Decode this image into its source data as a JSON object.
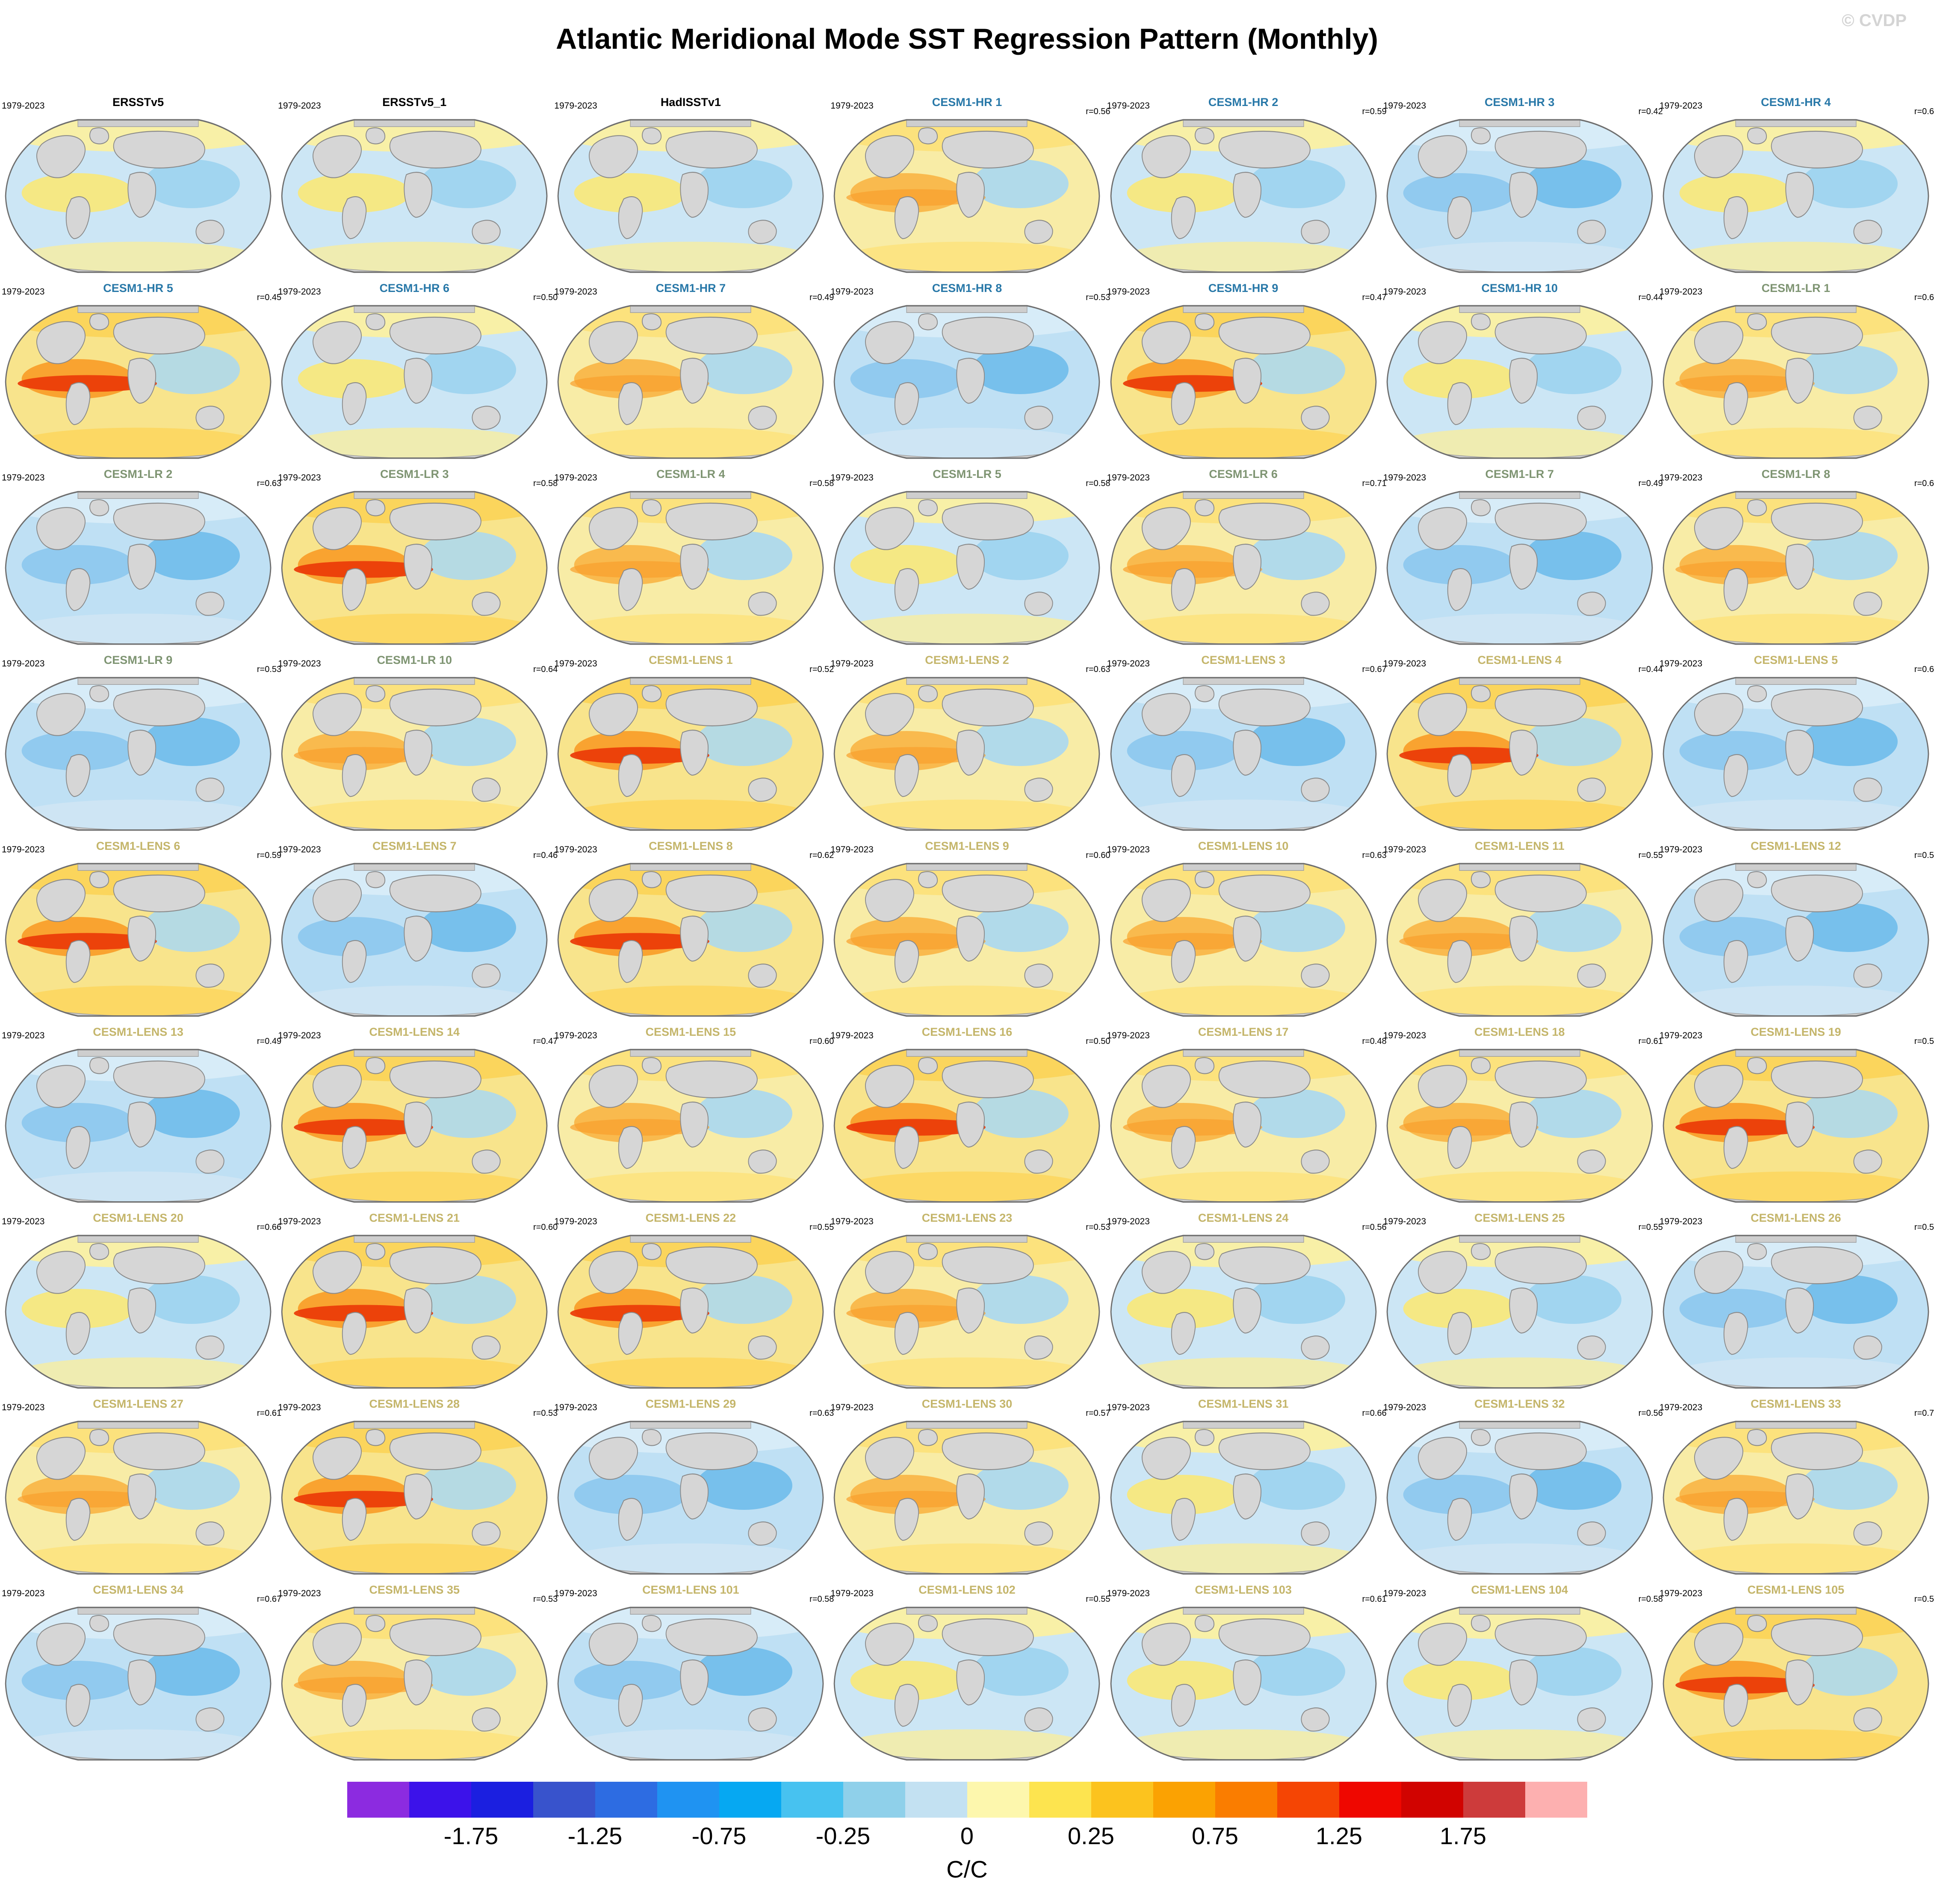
{
  "title": "Atlantic Meridional Mode SST Regression Pattern (Monthly)",
  "watermark": "© CVDP",
  "colors": {
    "group_obs": "#000000",
    "group_hr": "#2878a8",
    "group_lr": "#7e9472",
    "group_lens": "#c4b56a",
    "land": "#d6d6d6",
    "ocean_base": "#cce6f5"
  },
  "chart_data": {
    "type": "heatmap",
    "title": "Atlantic Meridional Mode SST Regression Pattern (Monthly)",
    "subtitle": "",
    "layout": "9 rows x 7 columns of global SST regression maps, shared colorbar at bottom",
    "colorbar": {
      "unit": "C/C",
      "tick_labels": [
        "-1.75",
        "-1.25",
        "-0.75",
        "-0.25",
        "0",
        "0.25",
        "0.75",
        "1.25",
        "1.75"
      ],
      "n_segments": 20,
      "segment_colors": [
        "#8c2be0",
        "#3c12ea",
        "#1b1fe0",
        "#3853cc",
        "#2d6ce2",
        "#1f93f2",
        "#06a8f2",
        "#47c2f0",
        "#8fd0ea",
        "#c3e1f2",
        "#fdf7ad",
        "#fde44f",
        "#fcc31e",
        "#fba202",
        "#fa7d00",
        "#f54504",
        "#ef0700",
        "#d10300",
        "#cd3b3b",
        "#fdb0b0"
      ]
    },
    "panels": [
      {
        "title": "ERSSTv5",
        "period": "1979-2023",
        "r": null,
        "r_label": "",
        "group": "obs",
        "tone": "mixed"
      },
      {
        "title": "ERSSTv5_1",
        "period": "1979-2023",
        "r": null,
        "r_label": "",
        "group": "obs",
        "tone": "mixed"
      },
      {
        "title": "HadISSTv1",
        "period": "1979-2023",
        "r": null,
        "r_label": "",
        "group": "obs",
        "tone": "mixed"
      },
      {
        "title": "CESM1-HR 1",
        "period": "1979-2023",
        "r": 0.56,
        "r_label": "r=0.56",
        "group": "hr",
        "tone": "warm"
      },
      {
        "title": "CESM1-HR 2",
        "period": "1979-2023",
        "r": 0.59,
        "r_label": "r=0.59",
        "group": "hr",
        "tone": "mixed"
      },
      {
        "title": "CESM1-HR 3",
        "period": "1979-2023",
        "r": 0.42,
        "r_label": "r=0.42",
        "group": "hr",
        "tone": "cool"
      },
      {
        "title": "CESM1-HR 4",
        "period": "1979-2023",
        "r": 0.6,
        "r_label": "r=0.6",
        "group": "hr",
        "tone": "mixed"
      },
      {
        "title": "CESM1-HR 5",
        "period": "1979-2023",
        "r": 0.45,
        "r_label": "r=0.45",
        "group": "hr",
        "tone": "hot"
      },
      {
        "title": "CESM1-HR 6",
        "period": "1979-2023",
        "r": 0.5,
        "r_label": "r=0.50",
        "group": "hr",
        "tone": "mixed"
      },
      {
        "title": "CESM1-HR 7",
        "period": "1979-2023",
        "r": 0.49,
        "r_label": "r=0.49",
        "group": "hr",
        "tone": "warm"
      },
      {
        "title": "CESM1-HR 8",
        "period": "1979-2023",
        "r": 0.53,
        "r_label": "r=0.53",
        "group": "hr",
        "tone": "cool"
      },
      {
        "title": "CESM1-HR 9",
        "period": "1979-2023",
        "r": 0.47,
        "r_label": "r=0.47",
        "group": "hr",
        "tone": "hot"
      },
      {
        "title": "CESM1-HR 10",
        "period": "1979-2023",
        "r": 0.44,
        "r_label": "r=0.44",
        "group": "hr",
        "tone": "mixed"
      },
      {
        "title": "CESM1-LR 1",
        "period": "1979-2023",
        "r": 0.6,
        "r_label": "r=0.6",
        "group": "lr",
        "tone": "warm"
      },
      {
        "title": "CESM1-LR 2",
        "period": "1979-2023",
        "r": 0.63,
        "r_label": "r=0.63",
        "group": "lr",
        "tone": "cool"
      },
      {
        "title": "CESM1-LR 3",
        "period": "1979-2023",
        "r": 0.58,
        "r_label": "r=0.58",
        "group": "lr",
        "tone": "hot"
      },
      {
        "title": "CESM1-LR 4",
        "period": "1979-2023",
        "r": 0.58,
        "r_label": "r=0.58",
        "group": "lr",
        "tone": "warm"
      },
      {
        "title": "CESM1-LR 5",
        "period": "1979-2023",
        "r": 0.58,
        "r_label": "r=0.58",
        "group": "lr",
        "tone": "mixed"
      },
      {
        "title": "CESM1-LR 6",
        "period": "1979-2023",
        "r": 0.71,
        "r_label": "r=0.71",
        "group": "lr",
        "tone": "warm"
      },
      {
        "title": "CESM1-LR 7",
        "period": "1979-2023",
        "r": 0.49,
        "r_label": "r=0.49",
        "group": "lr",
        "tone": "cool"
      },
      {
        "title": "CESM1-LR 8",
        "period": "1979-2023",
        "r": 0.6,
        "r_label": "r=0.6",
        "group": "lr",
        "tone": "warm"
      },
      {
        "title": "CESM1-LR 9",
        "period": "1979-2023",
        "r": 0.53,
        "r_label": "r=0.53",
        "group": "lr",
        "tone": "cool"
      },
      {
        "title": "CESM1-LR 10",
        "period": "1979-2023",
        "r": 0.64,
        "r_label": "r=0.64",
        "group": "lr",
        "tone": "warm"
      },
      {
        "title": "CESM1-LENS 1",
        "period": "1979-2023",
        "r": 0.52,
        "r_label": "r=0.52",
        "group": "lens",
        "tone": "hot"
      },
      {
        "title": "CESM1-LENS 2",
        "period": "1979-2023",
        "r": 0.63,
        "r_label": "r=0.63",
        "group": "lens",
        "tone": "warm"
      },
      {
        "title": "CESM1-LENS 3",
        "period": "1979-2023",
        "r": 0.67,
        "r_label": "r=0.67",
        "group": "lens",
        "tone": "cool"
      },
      {
        "title": "CESM1-LENS 4",
        "period": "1979-2023",
        "r": 0.44,
        "r_label": "r=0.44",
        "group": "lens",
        "tone": "hot"
      },
      {
        "title": "CESM1-LENS 5",
        "period": "1979-2023",
        "r": 0.6,
        "r_label": "r=0.6",
        "group": "lens",
        "tone": "cool"
      },
      {
        "title": "CESM1-LENS 6",
        "period": "1979-2023",
        "r": 0.59,
        "r_label": "r=0.59",
        "group": "lens",
        "tone": "hot"
      },
      {
        "title": "CESM1-LENS 7",
        "period": "1979-2023",
        "r": 0.46,
        "r_label": "r=0.46",
        "group": "lens",
        "tone": "cool"
      },
      {
        "title": "CESM1-LENS 8",
        "period": "1979-2023",
        "r": 0.62,
        "r_label": "r=0.62",
        "group": "lens",
        "tone": "hot"
      },
      {
        "title": "CESM1-LENS 9",
        "period": "1979-2023",
        "r": 0.6,
        "r_label": "r=0.60",
        "group": "lens",
        "tone": "warm"
      },
      {
        "title": "CESM1-LENS 10",
        "period": "1979-2023",
        "r": 0.63,
        "r_label": "r=0.63",
        "group": "lens",
        "tone": "warm"
      },
      {
        "title": "CESM1-LENS 11",
        "period": "1979-2023",
        "r": 0.55,
        "r_label": "r=0.55",
        "group": "lens",
        "tone": "warm"
      },
      {
        "title": "CESM1-LENS 12",
        "period": "1979-2023",
        "r": 0.5,
        "r_label": "r=0.5",
        "group": "lens",
        "tone": "cool"
      },
      {
        "title": "CESM1-LENS 13",
        "period": "1979-2023",
        "r": 0.49,
        "r_label": "r=0.49",
        "group": "lens",
        "tone": "cool"
      },
      {
        "title": "CESM1-LENS 14",
        "period": "1979-2023",
        "r": 0.47,
        "r_label": "r=0.47",
        "group": "lens",
        "tone": "hot"
      },
      {
        "title": "CESM1-LENS 15",
        "period": "1979-2023",
        "r": 0.6,
        "r_label": "r=0.60",
        "group": "lens",
        "tone": "warm"
      },
      {
        "title": "CESM1-LENS 16",
        "period": "1979-2023",
        "r": 0.5,
        "r_label": "r=0.50",
        "group": "lens",
        "tone": "hot"
      },
      {
        "title": "CESM1-LENS 17",
        "period": "1979-2023",
        "r": 0.48,
        "r_label": "r=0.48",
        "group": "lens",
        "tone": "warm"
      },
      {
        "title": "CESM1-LENS 18",
        "period": "1979-2023",
        "r": 0.61,
        "r_label": "r=0.61",
        "group": "lens",
        "tone": "warm"
      },
      {
        "title": "CESM1-LENS 19",
        "period": "1979-2023",
        "r": 0.5,
        "r_label": "r=0.5",
        "group": "lens",
        "tone": "hot"
      },
      {
        "title": "CESM1-LENS 20",
        "period": "1979-2023",
        "r": 0.66,
        "r_label": "r=0.66",
        "group": "lens",
        "tone": "mixed"
      },
      {
        "title": "CESM1-LENS 21",
        "period": "1979-2023",
        "r": 0.6,
        "r_label": "r=0.60",
        "group": "lens",
        "tone": "hot"
      },
      {
        "title": "CESM1-LENS 22",
        "period": "1979-2023",
        "r": 0.55,
        "r_label": "r=0.55",
        "group": "lens",
        "tone": "hot"
      },
      {
        "title": "CESM1-LENS 23",
        "period": "1979-2023",
        "r": 0.53,
        "r_label": "r=0.53",
        "group": "lens",
        "tone": "warm"
      },
      {
        "title": "CESM1-LENS 24",
        "period": "1979-2023",
        "r": 0.56,
        "r_label": "r=0.56",
        "group": "lens",
        "tone": "mixed"
      },
      {
        "title": "CESM1-LENS 25",
        "period": "1979-2023",
        "r": 0.55,
        "r_label": "r=0.55",
        "group": "lens",
        "tone": "mixed"
      },
      {
        "title": "CESM1-LENS 26",
        "period": "1979-2023",
        "r": 0.5,
        "r_label": "r=0.5",
        "group": "lens",
        "tone": "cool"
      },
      {
        "title": "CESM1-LENS 27",
        "period": "1979-2023",
        "r": 0.61,
        "r_label": "r=0.61",
        "group": "lens",
        "tone": "warm"
      },
      {
        "title": "CESM1-LENS 28",
        "period": "1979-2023",
        "r": 0.53,
        "r_label": "r=0.53",
        "group": "lens",
        "tone": "hot"
      },
      {
        "title": "CESM1-LENS 29",
        "period": "1979-2023",
        "r": 0.63,
        "r_label": "r=0.63",
        "group": "lens",
        "tone": "cool"
      },
      {
        "title": "CESM1-LENS 30",
        "period": "1979-2023",
        "r": 0.57,
        "r_label": "r=0.57",
        "group": "lens",
        "tone": "warm"
      },
      {
        "title": "CESM1-LENS 31",
        "period": "1979-2023",
        "r": 0.66,
        "r_label": "r=0.66",
        "group": "lens",
        "tone": "mixed"
      },
      {
        "title": "CESM1-LENS 32",
        "period": "1979-2023",
        "r": 0.56,
        "r_label": "r=0.56",
        "group": "lens",
        "tone": "cool"
      },
      {
        "title": "CESM1-LENS 33",
        "period": "1979-2023",
        "r": 0.7,
        "r_label": "r=0.7",
        "group": "lens",
        "tone": "warm"
      },
      {
        "title": "CESM1-LENS 34",
        "period": "1979-2023",
        "r": 0.67,
        "r_label": "r=0.67",
        "group": "lens",
        "tone": "cool"
      },
      {
        "title": "CESM1-LENS 35",
        "period": "1979-2023",
        "r": 0.53,
        "r_label": "r=0.53",
        "group": "lens",
        "tone": "warm"
      },
      {
        "title": "CESM1-LENS 101",
        "period": "1979-2023",
        "r": 0.58,
        "r_label": "r=0.58",
        "group": "lens",
        "tone": "cool"
      },
      {
        "title": "CESM1-LENS 102",
        "period": "1979-2023",
        "r": 0.55,
        "r_label": "r=0.55",
        "group": "lens",
        "tone": "mixed"
      },
      {
        "title": "CESM1-LENS 103",
        "period": "1979-2023",
        "r": 0.61,
        "r_label": "r=0.61",
        "group": "lens",
        "tone": "mixed"
      },
      {
        "title": "CESM1-LENS 104",
        "period": "1979-2023",
        "r": 0.58,
        "r_label": "r=0.58",
        "group": "lens",
        "tone": "mixed"
      },
      {
        "title": "CESM1-LENS 105",
        "period": "1979-2023",
        "r": 0.5,
        "r_label": "r=0.5",
        "group": "lens",
        "tone": "hot"
      }
    ]
  }
}
